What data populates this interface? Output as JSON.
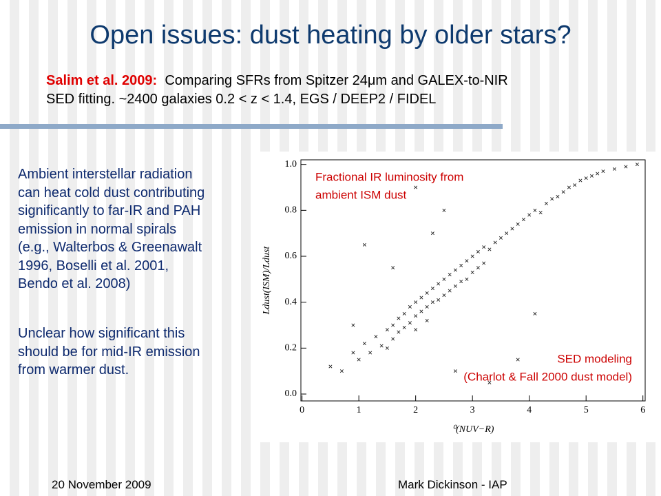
{
  "title": "Open issues: dust heating by older stars?",
  "citation": {
    "author": "Salim et al. 2009:",
    "text": "Comparing SFRs from Spitzer 24μm and GALEX-to-NIR",
    "text2": "SED fitting. ~2400 galaxies 0.2 < z < 1.4, EGS / DEEP2 / FIDEL"
  },
  "body": [
    [
      "Ambient interstellar radiation",
      "can heat cold dust contributing",
      "significantly to far-IR and PAH",
      "emission in normal spirals",
      "(e.g., Walterbos & Greenawalt",
      "1996, Boselli et al. 2001,",
      "Bendo et al. 2008)"
    ],
    [
      "Unclear how significant this",
      "should be for mid-IR emission",
      "from warmer dust."
    ]
  ],
  "footer": {
    "date": "20 November 2009",
    "author": "Mark Dickinson - IAP"
  },
  "chart_data": {
    "type": "scatter",
    "xlabel": "⁰(NUV−R)",
    "ylabel": "Ldust(ISM)/Ldust",
    "annotations": [
      "Fractional IR luminosity from",
      "ambient ISM dust",
      "SED modeling",
      "(Charlot & Fall 2000 dust model)"
    ],
    "color": "#222222",
    "xlim": [
      -0.02,
      6.04
    ],
    "ylim": [
      -0.03,
      1.02
    ],
    "xticks": [
      0,
      1,
      2,
      3,
      4,
      5,
      6
    ],
    "yticks": [
      {
        "value": 0,
        "label": "0.0"
      },
      0.2,
      0.4,
      0.6,
      0.8,
      {
        "value": 1,
        "label": "1.0"
      }
    ],
    "x": [
      0.5,
      0.7,
      0.9,
      1.0,
      1.1,
      1.2,
      1.3,
      1.4,
      1.5,
      1.5,
      1.6,
      1.6,
      1.7,
      1.7,
      1.8,
      1.8,
      1.9,
      1.9,
      2.0,
      2.0,
      2.0,
      2.1,
      2.1,
      2.2,
      2.2,
      2.2,
      2.3,
      2.3,
      2.4,
      2.4,
      2.5,
      2.5,
      2.6,
      2.6,
      2.7,
      2.7,
      2.8,
      2.8,
      2.9,
      2.9,
      3.0,
      3.0,
      3.1,
      3.1,
      3.2,
      3.2,
      3.3,
      3.4,
      3.5,
      3.6,
      3.7,
      3.8,
      3.9,
      4.0,
      4.1,
      4.2,
      4.3,
      4.4,
      4.5,
      4.6,
      4.7,
      4.8,
      4.9,
      5.0,
      5.1,
      5.2,
      5.3,
      5.5,
      5.7,
      5.9,
      1.1,
      2.0,
      2.5,
      3.3,
      2.7,
      1.6,
      4.1,
      3.8,
      0.9,
      2.3
    ],
    "y": [
      0.12,
      0.1,
      0.18,
      0.15,
      0.22,
      0.18,
      0.25,
      0.21,
      0.28,
      0.2,
      0.3,
      0.24,
      0.33,
      0.27,
      0.35,
      0.29,
      0.38,
      0.31,
      0.4,
      0.34,
      0.28,
      0.42,
      0.36,
      0.44,
      0.38,
      0.32,
      0.46,
      0.4,
      0.48,
      0.41,
      0.5,
      0.43,
      0.52,
      0.45,
      0.54,
      0.47,
      0.56,
      0.49,
      0.58,
      0.5,
      0.6,
      0.53,
      0.62,
      0.55,
      0.64,
      0.57,
      0.63,
      0.66,
      0.68,
      0.7,
      0.72,
      0.74,
      0.76,
      0.78,
      0.8,
      0.79,
      0.83,
      0.85,
      0.86,
      0.88,
      0.9,
      0.91,
      0.93,
      0.94,
      0.95,
      0.96,
      0.97,
      0.98,
      0.99,
      1.0,
      0.65,
      0.9,
      0.8,
      0.05,
      0.1,
      0.55,
      0.35,
      0.15,
      0.3,
      0.7
    ]
  }
}
